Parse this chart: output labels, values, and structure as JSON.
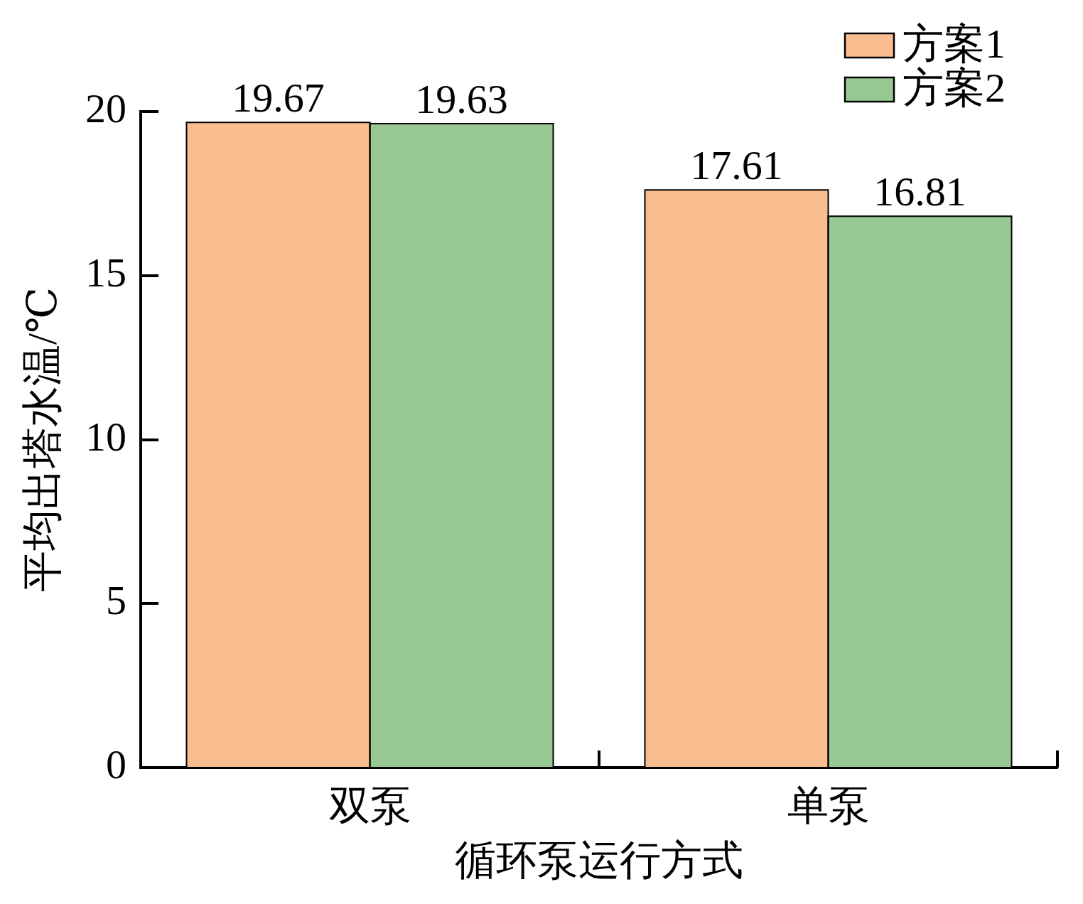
{
  "chart_data": {
    "type": "bar",
    "xlabel": "循环泵运行方式",
    "ylabel": "平均出塔水温/℃",
    "categories": [
      "双泵",
      "单泵"
    ],
    "series": [
      {
        "name": "方案1",
        "color": "#f9bd8f",
        "values": [
          19.67,
          17.61
        ]
      },
      {
        "name": "方案2",
        "color": "#99c992",
        "values": [
          19.63,
          16.81
        ]
      }
    ],
    "ylim": [
      0,
      20
    ],
    "yticks": [
      0,
      5,
      10,
      15,
      20
    ],
    "data_labels": true,
    "legend": "top right"
  }
}
